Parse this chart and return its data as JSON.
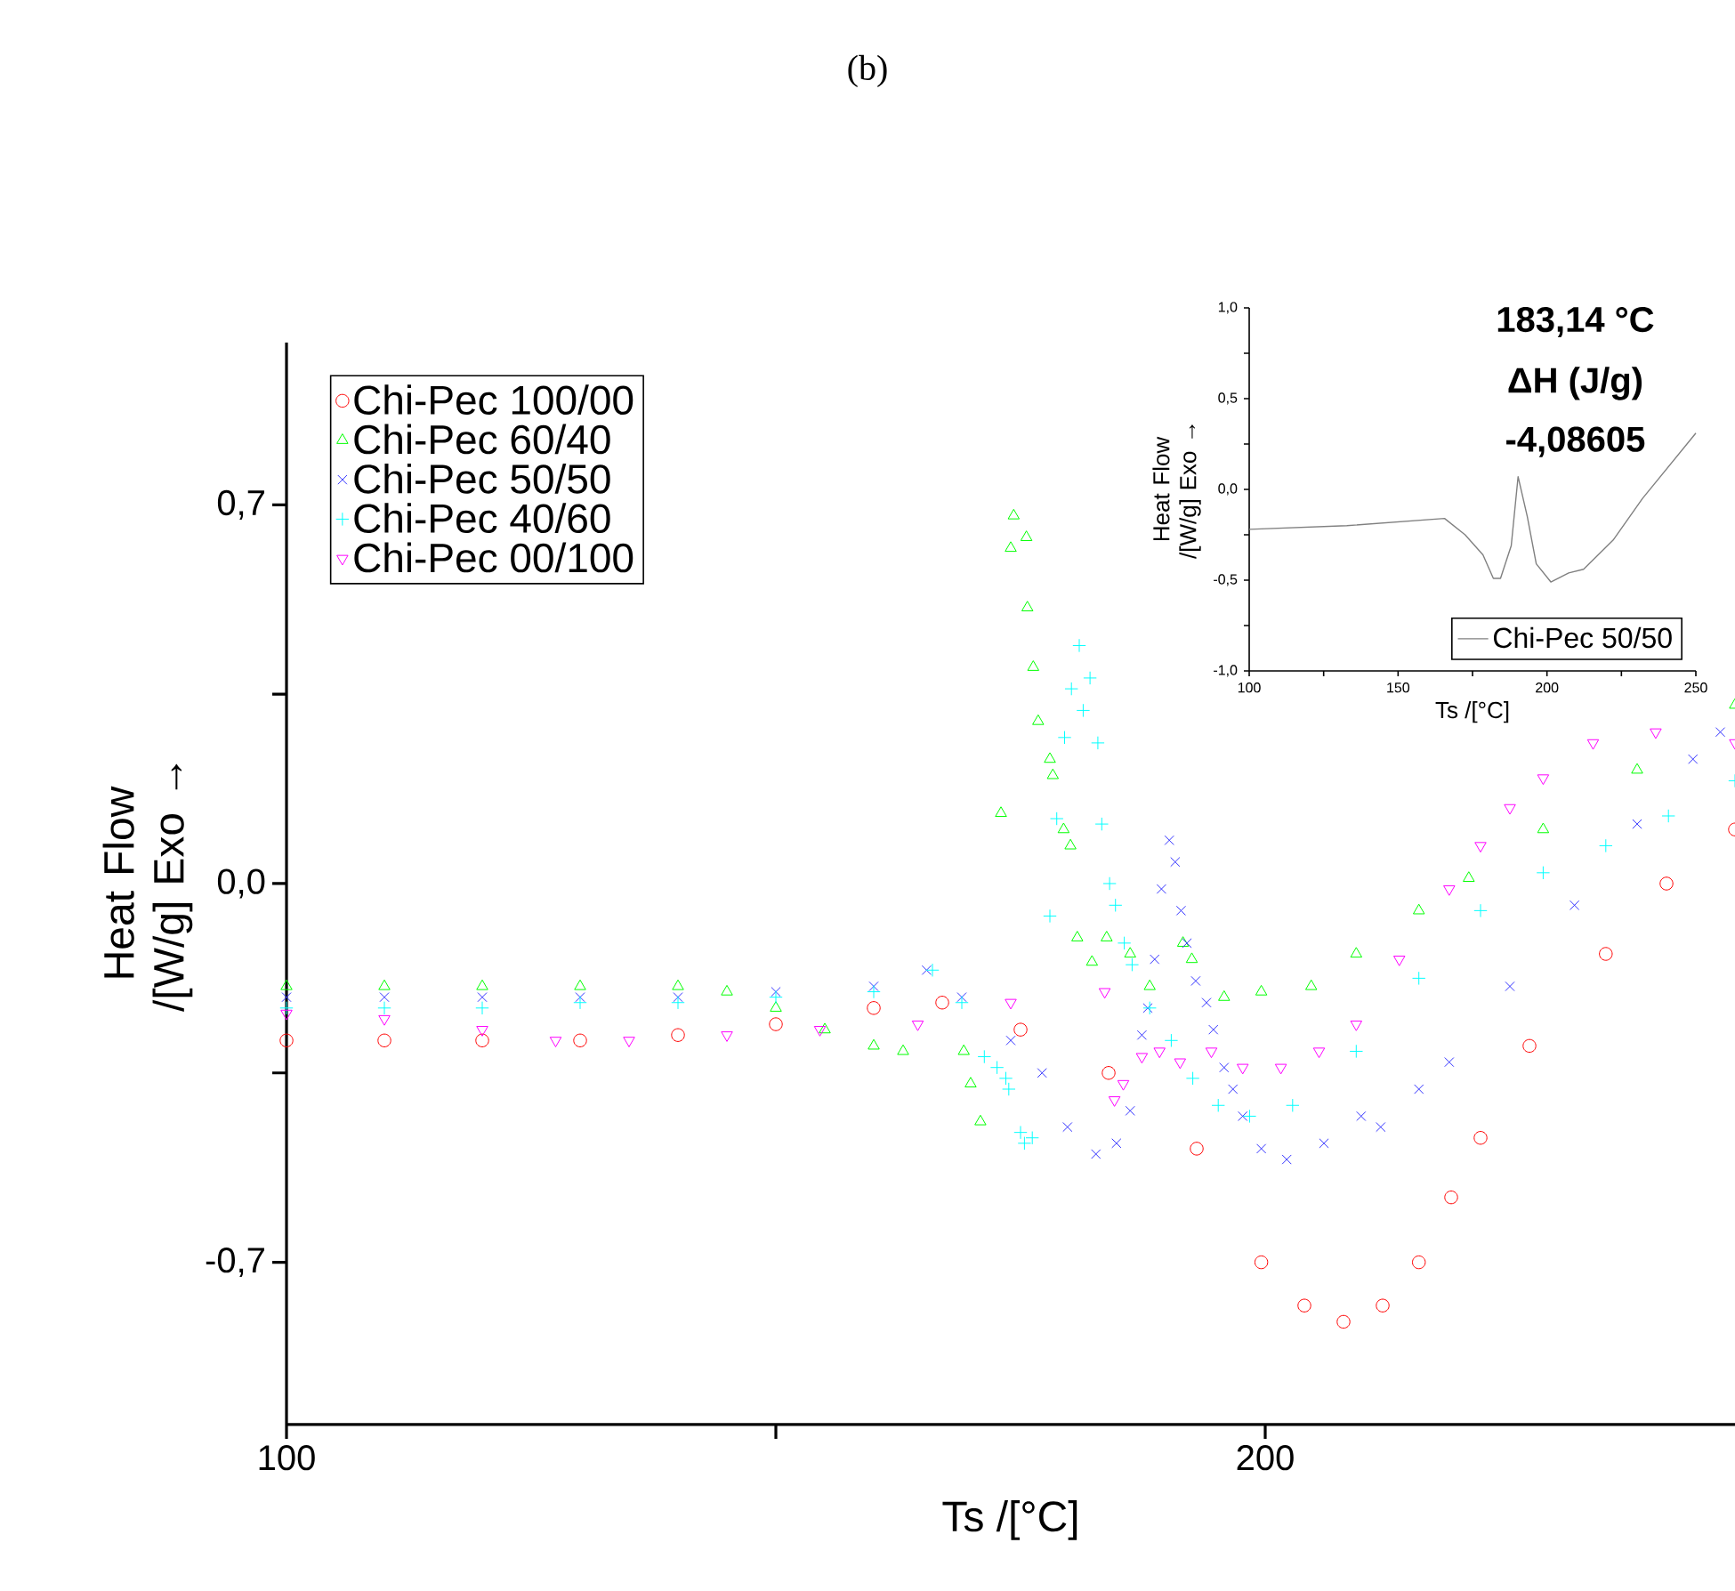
{
  "chart_data": [
    {
      "type": "scatter",
      "title": "(b)",
      "xlabel": "Ts /[°C]",
      "ylabel": "Heat Flow /[W/g] Exo →",
      "xlim": [
        100,
        248
      ],
      "ylim": [
        -1.0,
        1.0
      ],
      "xticks": [
        100,
        {
          "value": 150,
          "label": null
        },
        200
      ],
      "yticks": [
        {
          "value": -0.7,
          "label": "-0,7"
        },
        {
          "value": -0.35,
          "label": null
        },
        {
          "value": 0,
          "label": "0,0"
        },
        {
          "value": 0.35,
          "label": null
        },
        {
          "value": 0.7,
          "label": "0,7"
        }
      ],
      "legend": "top left",
      "series": [
        {
          "name": "Chi-Pec 100/00",
          "color": "#ff0000",
          "marker": "circle",
          "x": [
            100,
            110,
            120,
            130,
            140,
            150,
            160,
            167,
            175,
            184,
            193,
            199.6,
            204,
            208,
            212,
            215.7,
            219,
            222,
            227,
            234.8,
            241,
            248
          ],
          "values": [
            -0.29,
            -0.29,
            -0.29,
            -0.29,
            -0.28,
            -0.26,
            -0.23,
            -0.22,
            -0.27,
            -0.35,
            -0.49,
            -0.7,
            -0.78,
            -0.81,
            -0.78,
            -0.7,
            -0.58,
            -0.47,
            -0.3,
            -0.13,
            0.0,
            0.1
          ]
        },
        {
          "name": "Chi-Pec  60/40",
          "color": "#00ff00",
          "marker": "triangle",
          "x": [
            100,
            110,
            120,
            130,
            140,
            145,
            150,
            155,
            160,
            163,
            169.2,
            169.9,
            170.9,
            173,
            174,
            174.3,
            175.6,
            175.7,
            176.3,
            176.8,
            178,
            178.3,
            179.4,
            180.1,
            180.8,
            182.3,
            183.8,
            186.2,
            188.2,
            191.6,
            192.5,
            195.8,
            199.6,
            204.7,
            209.3,
            215.7,
            220.8,
            228.4,
            238,
            248
          ],
          "values": [
            -0.19,
            -0.19,
            -0.19,
            -0.19,
            -0.19,
            -0.2,
            -0.23,
            -0.27,
            -0.3,
            -0.31,
            -0.31,
            -0.37,
            -0.44,
            0.13,
            0.62,
            0.68,
            0.64,
            0.51,
            0.4,
            0.3,
            0.23,
            0.2,
            0.1,
            0.07,
            -0.1,
            -0.145,
            -0.1,
            -0.13,
            -0.19,
            -0.11,
            -0.14,
            -0.21,
            -0.2,
            -0.19,
            -0.13,
            -0.05,
            0.01,
            0.1,
            0.21,
            0.33
          ]
        },
        {
          "name": "Chi-Pec  50/50",
          "color": "#3333ff",
          "marker": "cross",
          "x": [
            100,
            110,
            120,
            130,
            140,
            150,
            160,
            165.4,
            169,
            174,
            177.2,
            179.8,
            182.7,
            184.8,
            186.2,
            187.4,
            188,
            188.7,
            189.4,
            190.2,
            190.8,
            191.4,
            192,
            192.9,
            194,
            194.7,
            195.8,
            196.7,
            197.7,
            199.6,
            202.2,
            206,
            209.8,
            211.8,
            215.7,
            218.8,
            225,
            231.6,
            238,
            243.7,
            246.5
          ],
          "values": [
            -0.21,
            -0.21,
            -0.21,
            -0.21,
            -0.21,
            -0.2,
            -0.19,
            -0.16,
            -0.21,
            -0.29,
            -0.35,
            -0.45,
            -0.5,
            -0.48,
            -0.42,
            -0.28,
            -0.23,
            -0.14,
            -0.01,
            0.08,
            0.04,
            -0.05,
            -0.11,
            -0.18,
            -0.22,
            -0.27,
            -0.34,
            -0.38,
            -0.43,
            -0.49,
            -0.51,
            -0.48,
            -0.43,
            -0.45,
            -0.38,
            -0.33,
            -0.19,
            -0.04,
            0.11,
            0.23,
            0.28
          ]
        },
        {
          "name": "Chi-Pec  40/60",
          "color": "#00ffff",
          "marker": "plus",
          "x": [
            100,
            110,
            120,
            130,
            140,
            150,
            160,
            166,
            169,
            171.3,
            172.6,
            173.5,
            173.8,
            175,
            175.4,
            176.2,
            178,
            178.7,
            179.5,
            180.2,
            181,
            181.4,
            182.1,
            182.9,
            183.3,
            184.1,
            184.7,
            185.6,
            186.4,
            188.2,
            190.4,
            192.6,
            195.2,
            198.4,
            202.8,
            209.3,
            215.7,
            222,
            228.4,
            234.8,
            241.2,
            248
          ],
          "values": [
            -0.23,
            -0.23,
            -0.23,
            -0.22,
            -0.22,
            -0.21,
            -0.2,
            -0.16,
            -0.22,
            -0.32,
            -0.34,
            -0.36,
            -0.38,
            -0.46,
            -0.48,
            -0.47,
            -0.06,
            0.12,
            0.27,
            0.36,
            0.44,
            0.32,
            0.38,
            0.26,
            0.11,
            0.0,
            -0.04,
            -0.11,
            -0.15,
            -0.23,
            -0.29,
            -0.36,
            -0.41,
            -0.43,
            -0.41,
            -0.31,
            -0.175,
            -0.05,
            0.02,
            0.07,
            0.125,
            0.19
          ]
        },
        {
          "name": "Chi-Pec 00/100",
          "color": "#ff00ff",
          "marker": "triangle_down",
          "x": [
            100,
            110,
            120,
            127.5,
            135,
            145,
            154.5,
            164.5,
            174,
            183.6,
            184.6,
            185.5,
            187.4,
            189.2,
            191.3,
            194.5,
            197.7,
            201.6,
            205.5,
            209.3,
            213.7,
            218.8,
            222,
            225,
            228.4,
            233.5,
            239.9,
            248
          ],
          "values": [
            -0.24,
            -0.25,
            -0.27,
            -0.29,
            -0.29,
            -0.28,
            -0.27,
            -0.26,
            -0.22,
            -0.2,
            -0.4,
            -0.37,
            -0.32,
            -0.31,
            -0.33,
            -0.31,
            -0.34,
            -0.34,
            -0.31,
            -0.26,
            -0.14,
            -0.01,
            0.07,
            0.14,
            0.195,
            0.26,
            0.28,
            0.26
          ]
        }
      ]
    },
    {
      "type": "line",
      "xlabel": "Ts /[°C]",
      "ylabel": "Heat Flow /[W/g] Exo →",
      "xlim": [
        100,
        250
      ],
      "ylim": [
        -1.0,
        1.0
      ],
      "xticks": [
        100,
        {
          "value": 125,
          "label": null
        },
        150,
        {
          "value": 175,
          "label": null
        },
        200,
        {
          "value": 225,
          "label": null
        },
        250
      ],
      "yticks": [
        {
          "value": -1.0,
          "label": "-1,0"
        },
        {
          "value": -0.75,
          "label": null
        },
        {
          "value": -0.5,
          "label": "-0,5"
        },
        {
          "value": -0.25,
          "label": null
        },
        {
          "value": 0,
          "label": "0,0"
        },
        {
          "value": 0.25,
          "label": null
        },
        {
          "value": 0.5,
          "label": "0,5"
        },
        {
          "value": 0.75,
          "label": null
        },
        {
          "value": 1.0,
          "label": "1,0"
        }
      ],
      "legend": "bottom right",
      "annotations": [
        "183,14 °C",
        "ΔH (J/g)",
        "-4,08605"
      ],
      "series": [
        {
          "name": "Chi-Pec  50/50",
          "color": "#808080",
          "x": [
            100,
            132.8,
            165.6,
            172.5,
            178.5,
            182,
            184.4,
            188,
            190.3,
            193.4,
            196.4,
            201.3,
            207.3,
            212.3,
            222.2,
            232.1,
            250
          ],
          "values": [
            -0.22,
            -0.2,
            -0.16,
            -0.25,
            -0.36,
            -0.49,
            -0.49,
            -0.31,
            0.07,
            -0.15,
            -0.41,
            -0.51,
            -0.46,
            -0.44,
            -0.28,
            -0.05,
            0.31
          ]
        }
      ]
    }
  ]
}
